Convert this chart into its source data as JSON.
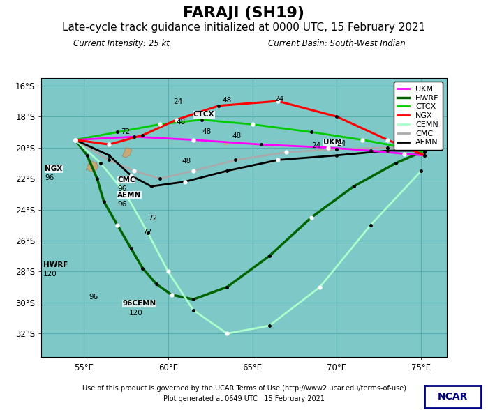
{
  "title": "FARAJI (SH19)",
  "subtitle": "Late-cycle track guidance initialized at 0000 UTC, 15 February 2021",
  "info_left": "Current Intensity: 25 kt",
  "info_right": "Current Basin: South-West Indian",
  "footer1": "Use of this product is governed by the UCAR Terms of Use (http://www2.ucar.edu/terms-of-use)",
  "footer2": "Plot generated at 0649 UTC   15 February 2021",
  "xlim": [
    52.5,
    76.5
  ],
  "ylim": [
    -33.5,
    -15.5
  ],
  "xticks": [
    55,
    60,
    65,
    70,
    75
  ],
  "yticks": [
    -16,
    -18,
    -20,
    -22,
    -24,
    -26,
    -28,
    -30,
    -32
  ],
  "bg_color": "#7EC8C8",
  "land_color": "#C8A876",
  "grid_color": "#55AAAA",
  "models": {
    "NGX": {
      "color": "#FF0000",
      "lw": 2.2,
      "lon": [
        54.5,
        56.5,
        58.5,
        60.5,
        63.0,
        66.5,
        70.0,
        73.0,
        75.2
      ],
      "lat": [
        -19.5,
        -19.8,
        -19.2,
        -18.2,
        -17.3,
        -17.0,
        -18.0,
        -19.5,
        -20.5
      ],
      "white_pts": [
        1,
        3,
        5,
        7
      ],
      "hours_label": {
        "96": [
          0,
          -21.8
        ]
      }
    },
    "CTCX": {
      "color": "#00CC00",
      "lw": 2.0,
      "lon": [
        54.5,
        57.0,
        59.5,
        62.0,
        65.0,
        68.5,
        71.5,
        74.0,
        75.2
      ],
      "lat": [
        -19.5,
        -19.0,
        -18.5,
        -18.2,
        -18.5,
        -19.0,
        -19.5,
        -20.0,
        -20.3
      ],
      "white_pts": [
        2,
        4,
        6
      ],
      "hours_label": {}
    },
    "UKM": {
      "color": "#FF00FF",
      "lw": 2.0,
      "lon": [
        54.5,
        58.0,
        61.5,
        65.5,
        69.5,
        72.0,
        74.0,
        75.2
      ],
      "lat": [
        -19.5,
        -19.3,
        -19.5,
        -19.8,
        -20.0,
        -20.2,
        -20.4,
        -20.5
      ],
      "white_pts": [
        2,
        4,
        6
      ],
      "hours_label": {}
    },
    "HWRF": {
      "color": "#006400",
      "lw": 2.5,
      "lon": [
        54.5,
        55.2,
        55.8,
        56.2,
        57.0,
        57.8,
        58.5,
        59.3,
        60.2,
        61.5,
        63.5,
        66.0,
        68.5,
        71.0,
        73.5,
        75.2
      ],
      "lat": [
        -19.5,
        -20.5,
        -22.0,
        -23.5,
        -25.0,
        -26.5,
        -27.8,
        -28.8,
        -29.5,
        -29.8,
        -29.0,
        -27.0,
        -24.5,
        -22.5,
        -21.0,
        -20.2
      ],
      "white_pts": [
        4,
        8,
        12
      ],
      "hours_label": {}
    },
    "CEMN": {
      "color": "#AAFFCC",
      "lw": 2.0,
      "lon": [
        54.5,
        56.0,
        57.5,
        58.8,
        60.0,
        61.5,
        63.5,
        66.0,
        69.0,
        72.0,
        75.0
      ],
      "lat": [
        -19.5,
        -21.0,
        -23.0,
        -25.5,
        -28.0,
        -30.5,
        -32.0,
        -31.5,
        -29.0,
        -25.0,
        -21.5
      ],
      "white_pts": [
        2,
        4,
        6,
        8
      ],
      "hours_label": {}
    },
    "CMC": {
      "color": "#AAAAAA",
      "lw": 2.0,
      "lon": [
        54.5,
        56.5,
        58.0,
        59.5,
        61.5,
        64.0,
        67.0,
        70.0,
        73.0,
        75.2
      ],
      "lat": [
        -19.5,
        -20.8,
        -21.5,
        -22.0,
        -21.5,
        -20.8,
        -20.3,
        -20.1,
        -20.0,
        -20.1
      ],
      "white_pts": [
        2,
        4,
        6
      ],
      "hours_label": {}
    },
    "AEMN": {
      "color": "#000000",
      "lw": 2.0,
      "lon": [
        54.5,
        56.5,
        57.8,
        59.0,
        61.0,
        63.5,
        66.5,
        70.0,
        73.0,
        75.2
      ],
      "lat": [
        -19.5,
        -20.5,
        -21.8,
        -22.5,
        -22.2,
        -21.5,
        -20.8,
        -20.5,
        -20.2,
        -20.2
      ],
      "white_pts": [
        2,
        4,
        6
      ],
      "hours_label": {}
    }
  },
  "reunion": {
    "lon": [
      55.15,
      55.35,
      55.75,
      55.85,
      55.7,
      55.4,
      55.2,
      55.15
    ],
    "lat": [
      -21.45,
      -20.85,
      -20.95,
      -21.25,
      -21.5,
      -21.55,
      -21.35,
      -21.45
    ]
  },
  "mauritius": {
    "lon": [
      57.3,
      57.5,
      57.85,
      57.78,
      57.55,
      57.38,
      57.3
    ],
    "lat": [
      -20.55,
      -20.0,
      -20.1,
      -20.45,
      -20.62,
      -20.6,
      -20.55
    ]
  },
  "rodrigues": {
    "lon": [
      63.3,
      63.45,
      63.55,
      63.42,
      63.3
    ],
    "lat": [
      -19.65,
      -19.6,
      -19.73,
      -19.78,
      -19.65
    ]
  }
}
